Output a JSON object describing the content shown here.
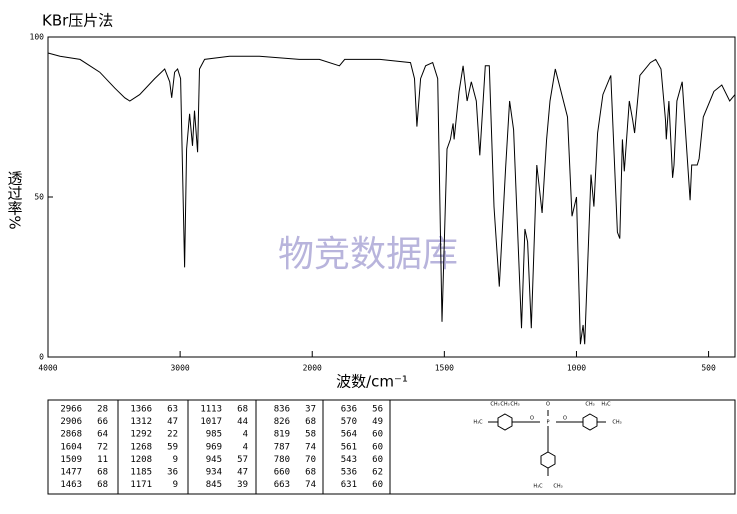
{
  "chart_data": {
    "type": "line",
    "title": "KBr压片法",
    "x_label": "波数/cm⁻¹",
    "y_label": "透过率%",
    "watermark": "物竞数据库",
    "xlim": [
      4000,
      400
    ],
    "x_scale_break": 2000,
    "x_scale_factor": 2,
    "ylim": [
      0,
      100
    ],
    "xticks": [
      4000,
      3000,
      2000,
      1500,
      1000,
      500
    ],
    "yticks": [
      0,
      50,
      100
    ],
    "color": "#000000",
    "series": [
      {
        "name": "IR",
        "x": [
          4000,
          3909,
          3758,
          3608,
          3494,
          3419,
          3381,
          3306,
          3192,
          3117,
          3079,
          3064,
          3042,
          3019,
          2996,
          2966,
          2951,
          2928,
          2906,
          2891,
          2868,
          2853,
          2815,
          2626,
          2400,
          2098,
          1973,
          1897,
          1877,
          1743,
          1628,
          1613,
          1604,
          1590,
          1571,
          1544,
          1525,
          1509,
          1490,
          1477,
          1467,
          1463,
          1444,
          1429,
          1414,
          1398,
          1379,
          1366,
          1345,
          1330,
          1312,
          1292,
          1268,
          1253,
          1238,
          1208,
          1195,
          1185,
          1171,
          1150,
          1130,
          1113,
          1100,
          1080,
          1034,
          1017,
          1000,
          985,
          975,
          969,
          955,
          945,
          934,
          920,
          900,
          870,
          845,
          836,
          826,
          819,
          800,
          787,
          780,
          760,
          720,
          700,
          680,
          663,
          660,
          650,
          636,
          631,
          620,
          600,
          570,
          564,
          561,
          551,
          543,
          536,
          520,
          480,
          450,
          420,
          400
        ],
        "values": [
          95,
          94,
          93,
          89,
          84,
          81,
          80,
          82,
          87,
          90,
          86,
          81,
          89,
          90,
          87,
          28,
          65,
          76,
          66,
          77,
          64,
          90,
          93,
          94,
          94,
          93,
          93,
          91,
          93,
          93,
          92,
          87,
          72,
          87,
          91,
          92,
          87,
          11,
          65,
          68,
          73,
          68,
          83,
          91,
          80,
          86,
          80,
          63,
          91,
          91,
          47,
          22,
          59,
          80,
          71,
          9,
          40,
          36,
          9,
          60,
          45,
          68,
          80,
          90,
          75,
          44,
          50,
          4,
          10,
          4,
          35,
          57,
          47,
          70,
          82,
          88,
          39,
          37,
          68,
          58,
          80,
          74,
          70,
          88,
          92,
          93,
          90,
          74,
          68,
          80,
          56,
          60,
          80,
          86,
          49,
          60,
          60,
          60,
          60,
          62,
          75,
          83,
          85,
          80,
          82
        ]
      }
    ],
    "peak_table": [
      [
        [
          2966,
          28
        ],
        [
          2906,
          66
        ],
        [
          2868,
          64
        ],
        [
          1604,
          72
        ],
        [
          1509,
          11
        ],
        [
          1477,
          68
        ],
        [
          1463,
          68
        ]
      ],
      [
        [
          1366,
          63
        ],
        [
          1312,
          47
        ],
        [
          1292,
          22
        ],
        [
          1268,
          59
        ],
        [
          1208,
          9
        ],
        [
          1185,
          36
        ],
        [
          1171,
          9
        ]
      ],
      [
        [
          1113,
          68
        ],
        [
          1017,
          44
        ],
        [
          985,
          4
        ],
        [
          969,
          4
        ],
        [
          945,
          57
        ],
        [
          934,
          47
        ],
        [
          845,
          39
        ]
      ],
      [
        [
          836,
          37
        ],
        [
          826,
          68
        ],
        [
          819,
          58
        ],
        [
          787,
          74
        ],
        [
          780,
          70
        ],
        [
          660,
          68
        ],
        [
          663,
          74
        ]
      ],
      [
        [
          636,
          56
        ],
        [
          570,
          49
        ],
        [
          564,
          60
        ],
        [
          561,
          60
        ],
        [
          543,
          60
        ],
        [
          536,
          62
        ],
        [
          631,
          60
        ]
      ]
    ],
    "structure_labels": [
      "H₃C",
      "CH₃",
      "CH₃",
      "CH₃",
      "H₃C",
      "CH₃",
      "CH₃",
      "H₃C",
      "CH₃",
      "O",
      "O",
      "O",
      "P"
    ]
  }
}
